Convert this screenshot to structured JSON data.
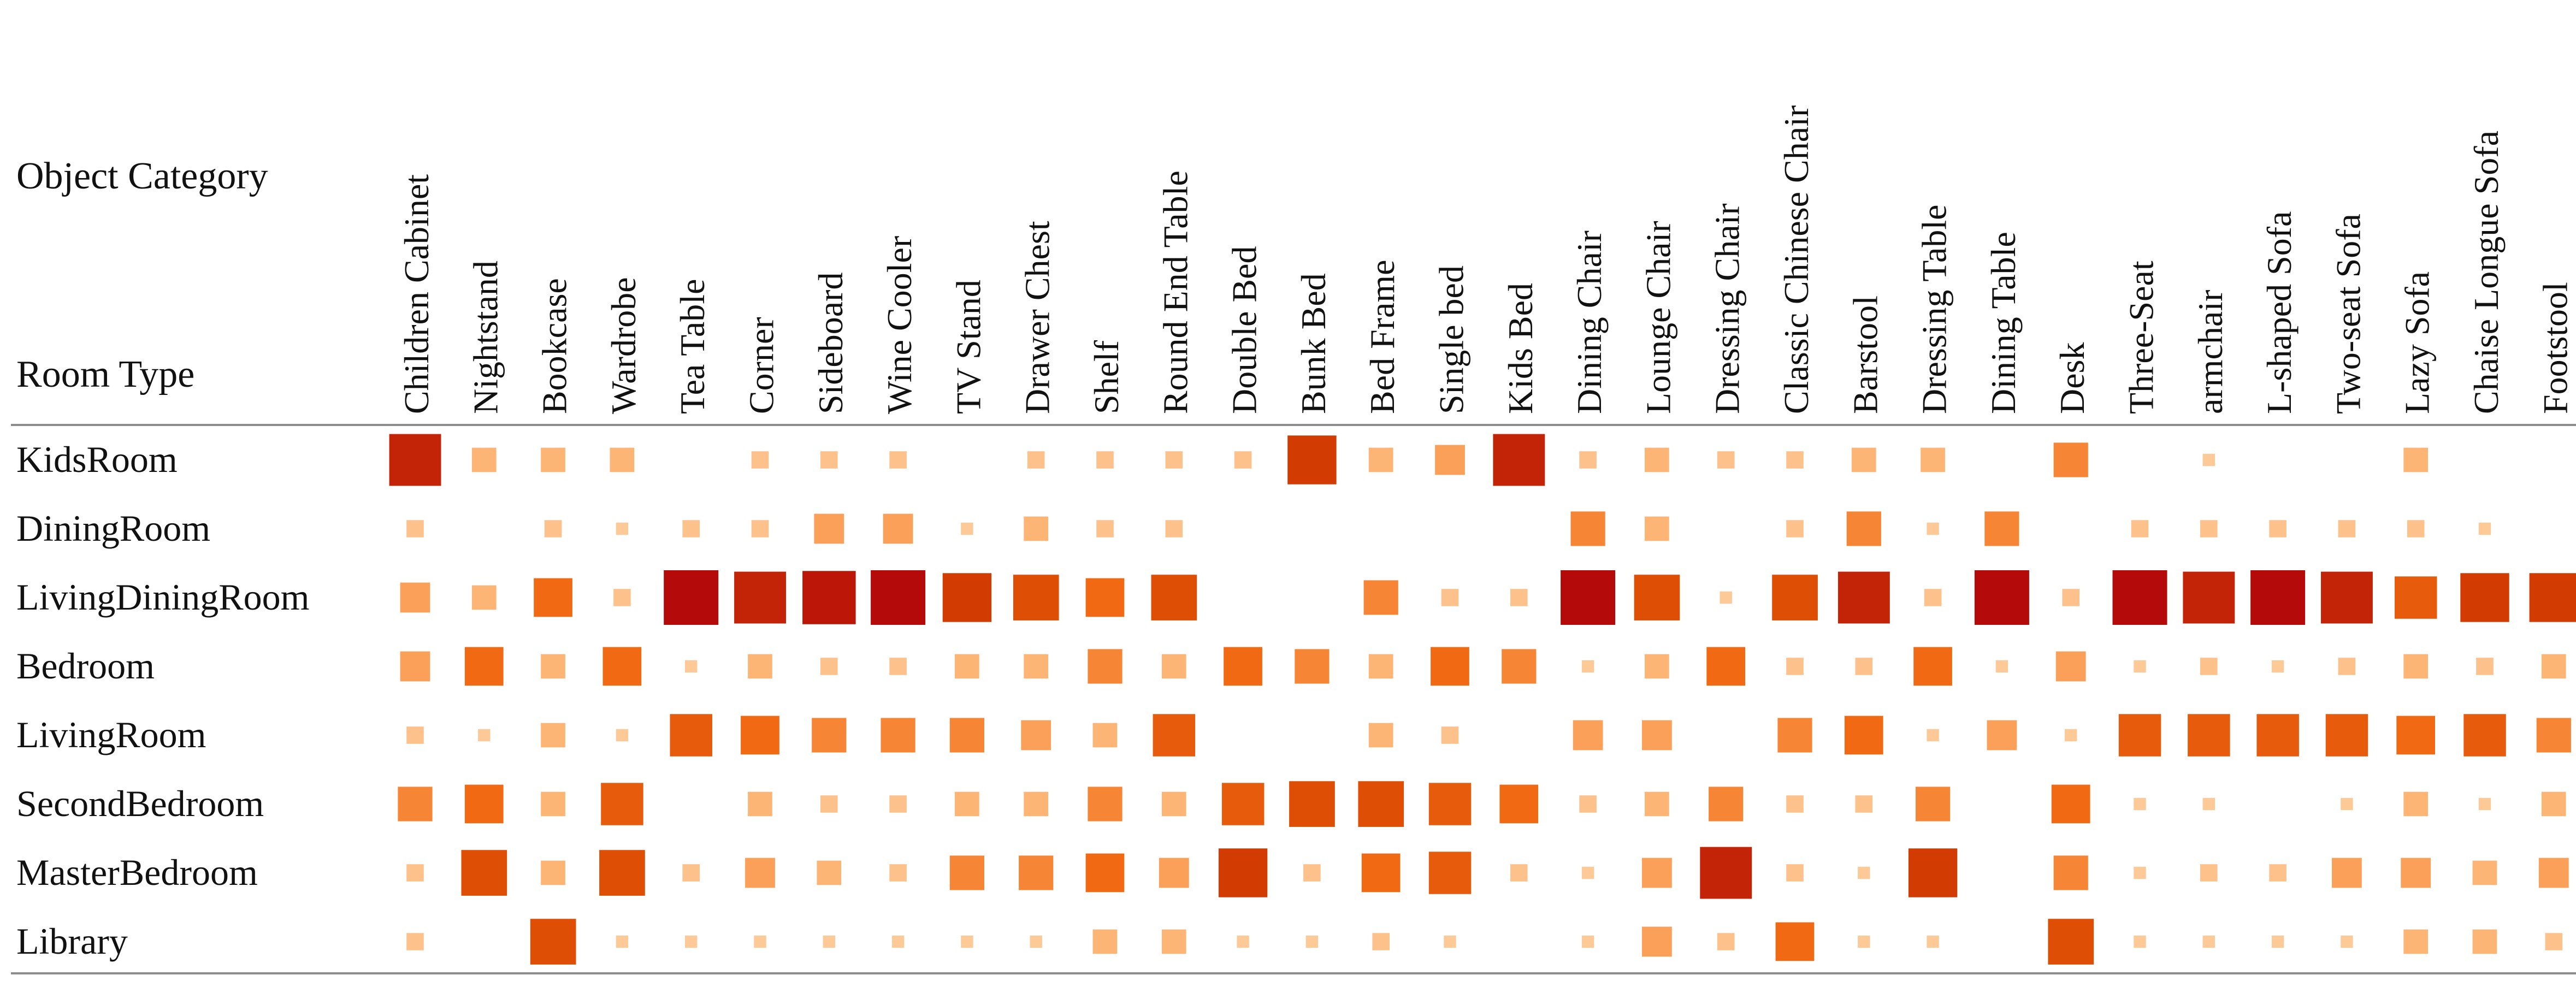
{
  "chart_data": {
    "type": "heatmap",
    "encoding": "square size and color intensity (light orange to dark red) represent co-occurrence strength on a 0-10 scale",
    "corner_labels": {
      "column_axis": "Object Category",
      "row_axis": "Room Type"
    },
    "columns": [
      "Children Cabinet",
      "Nightstand",
      "Bookcase",
      "Wardrobe",
      "Tea Table",
      "Corner",
      "Sideboard",
      "Wine Cooler",
      "TV Stand",
      "Drawer Chest",
      "Shelf",
      "Round End Table",
      "Double Bed",
      "Bunk Bed",
      "Bed Frame",
      "Single bed",
      "Kids Bed",
      "Dining Chair",
      "Lounge Chair",
      "Dressing Chair",
      "Classic Chinese Chair",
      "Barstool",
      "Dressing Table",
      "Dining Table",
      "Desk",
      "Three-Seat",
      "armchair",
      "L-shaped Sofa",
      "Two-seat Sofa",
      "Lazy Sofa",
      "Chaise Longue Sofa",
      "Footstool"
    ],
    "rows": [
      {
        "name": "KidsRoom",
        "values": [
          9,
          2,
          2,
          2,
          0,
          1,
          1,
          1,
          0,
          1,
          1,
          1,
          1,
          8,
          2,
          3,
          9,
          1,
          2,
          1,
          1,
          2,
          2,
          0,
          4,
          0,
          0.5,
          0,
          0,
          2,
          0,
          0
        ]
      },
      {
        "name": "DiningRoom",
        "values": [
          1,
          0,
          1,
          0.5,
          1,
          1,
          3,
          3,
          0.5,
          2,
          1,
          1,
          0,
          0,
          0,
          0,
          0,
          4,
          2,
          0,
          1,
          4,
          0.5,
          4,
          0,
          1,
          1,
          1,
          1,
          1,
          0.5,
          0
        ]
      },
      {
        "name": "LivingDiningRoom",
        "values": [
          3,
          2,
          5,
          1,
          10,
          9,
          9.5,
          10,
          8,
          7,
          5,
          7,
          0,
          0,
          4,
          1,
          1,
          10,
          7,
          0.5,
          7,
          9,
          1,
          10,
          1,
          10,
          9,
          10,
          9,
          6,
          8,
          8
        ]
      },
      {
        "name": "Bedroom",
        "values": [
          3,
          5,
          2,
          5,
          0.5,
          2,
          1,
          1,
          2,
          2,
          4,
          2,
          5,
          4,
          2,
          5,
          4,
          0.5,
          2,
          5,
          1,
          1,
          5,
          0.5,
          3,
          0.5,
          1,
          0.5,
          1,
          2,
          1,
          2
        ]
      },
      {
        "name": "LivingRoom",
        "values": [
          1,
          0.5,
          2,
          0.5,
          6,
          5,
          4,
          4,
          4,
          3,
          2,
          6,
          0,
          0,
          2,
          1,
          0,
          3,
          3,
          0,
          4,
          5,
          0.5,
          3,
          0.5,
          6,
          6,
          6,
          6,
          5,
          6,
          4
        ]
      },
      {
        "name": "SecondBedroom",
        "values": [
          4,
          5,
          2,
          6,
          0,
          2,
          1,
          1,
          2,
          2,
          4,
          2,
          6,
          7,
          7,
          6,
          5,
          1,
          2,
          4,
          1,
          1,
          4,
          0,
          5,
          0.5,
          0.5,
          0,
          0.5,
          2,
          0.5,
          2
        ]
      },
      {
        "name": "MasterBedroom",
        "values": [
          1,
          7,
          2,
          7,
          1,
          3,
          2,
          1,
          4,
          4,
          5,
          3,
          8,
          1,
          5,
          6,
          1,
          0.5,
          3,
          9,
          1,
          0.5,
          8,
          0,
          4,
          0.5,
          1,
          1,
          3,
          3,
          2,
          3
        ]
      },
      {
        "name": "Library",
        "values": [
          1,
          0,
          7,
          0.5,
          0.5,
          0.5,
          0.5,
          0.5,
          0.5,
          0.5,
          2,
          2,
          0.5,
          0.5,
          1,
          0.5,
          0,
          0.5,
          3,
          1,
          5,
          0.5,
          0.5,
          0,
          7,
          0.5,
          0.5,
          0.5,
          0.5,
          2,
          2,
          1
        ]
      }
    ],
    "value_range": [
      0,
      10
    ],
    "color_scale": [
      "#FDD0A2",
      "#FDAE6B",
      "#F16913",
      "#D94801",
      "#B40A0A"
    ],
    "grid": false,
    "legend": "none"
  }
}
